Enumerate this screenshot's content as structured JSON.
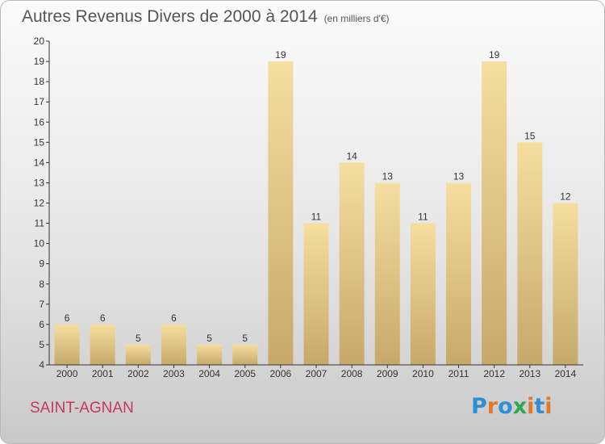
{
  "title": "Autres Revenus Divers de 2000 à 2014",
  "subtitle": "(en milliers d'€)",
  "town": "SAINT-AGNAN",
  "brand": {
    "letters": [
      "P",
      "r",
      "o",
      "x",
      "i",
      "t",
      "i"
    ],
    "colors": [
      "#2f8fd6",
      "#e0782a",
      "#2f8fd6",
      "#2fa84f",
      "#e0782a",
      "#2f8fd6",
      "#e0782a"
    ]
  },
  "colors": {
    "bar_light": "#f5dea0",
    "bar_dark": "#c6a96a",
    "axis": "#333333"
  },
  "chart_data": {
    "type": "bar",
    "categories": [
      "2000",
      "2001",
      "2002",
      "2003",
      "2004",
      "2005",
      "2006",
      "2007",
      "2008",
      "2009",
      "2010",
      "2011",
      "2012",
      "2013",
      "2014"
    ],
    "values": [
      6,
      6,
      5,
      6,
      5,
      5,
      19,
      11,
      14,
      13,
      11,
      13,
      19,
      15,
      12
    ],
    "ylim": [
      4,
      20
    ],
    "yticks": [
      4,
      5,
      6,
      7,
      8,
      9,
      10,
      11,
      12,
      13,
      14,
      15,
      16,
      17,
      18,
      19,
      20
    ],
    "grid": false,
    "data_labels": true
  }
}
